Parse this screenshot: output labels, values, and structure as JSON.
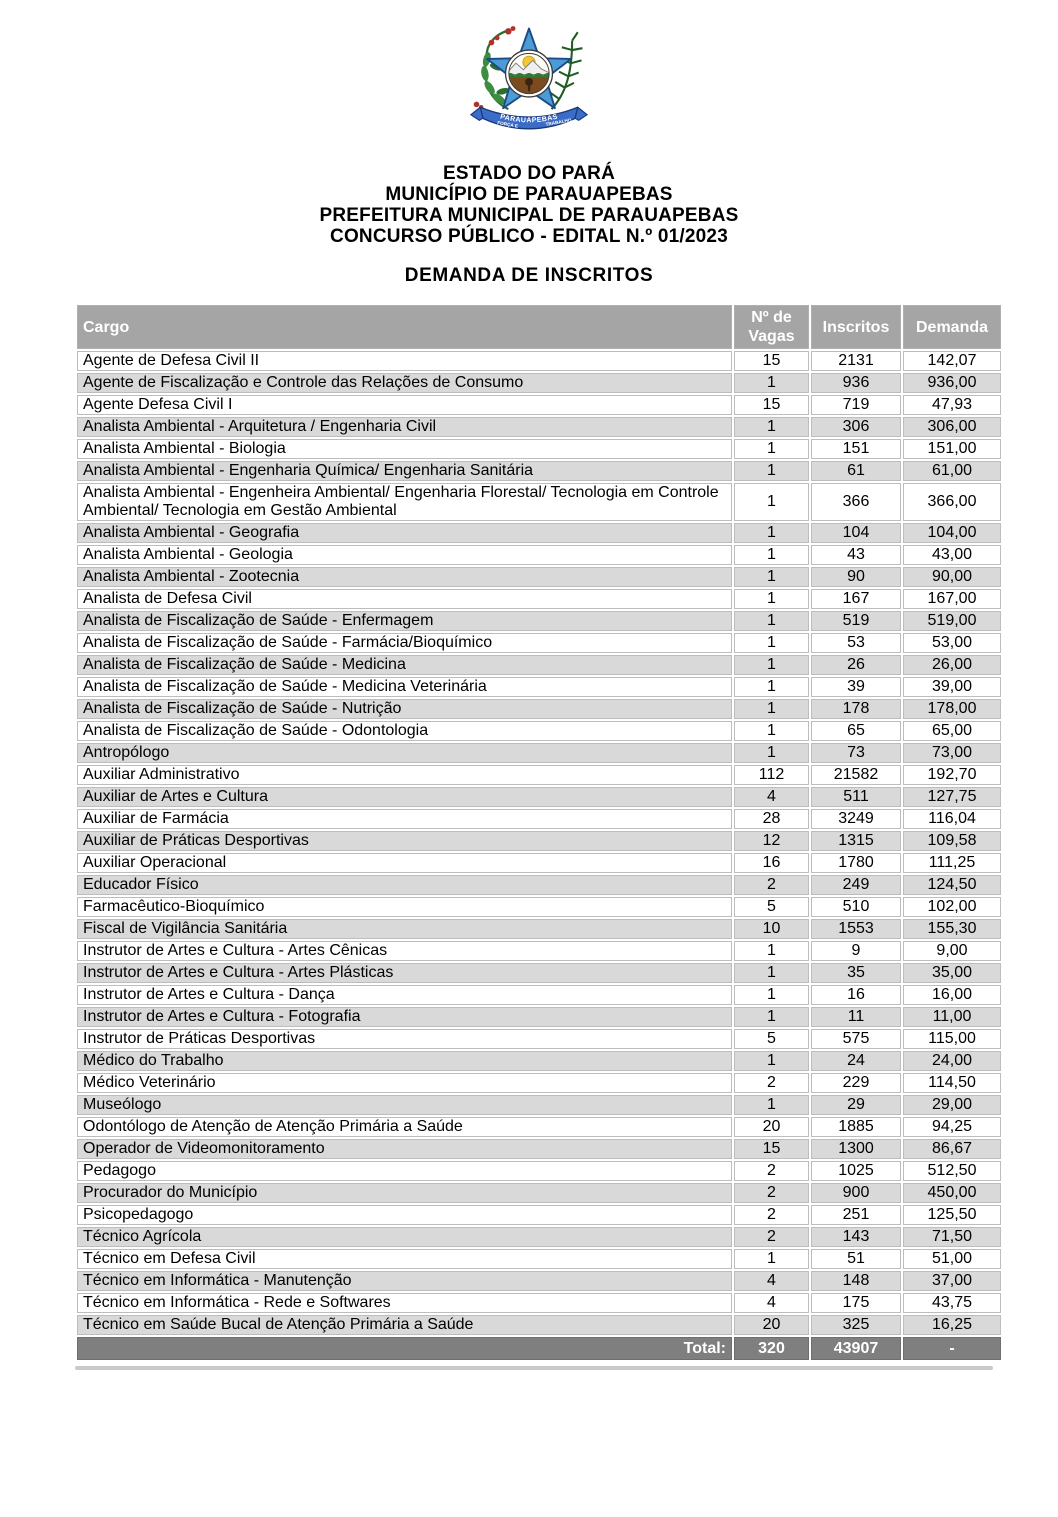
{
  "document": {
    "header_lines": [
      "ESTADO DO PARÁ",
      "MUNICÍPIO DE PARAUAPEBAS",
      "PREFEITURA MUNICIPAL DE PARAUAPEBAS",
      "CONCURSO PÚBLICO - EDITAL N.º 01/2023"
    ],
    "title": "DEMANDA DE INSCRITOS"
  },
  "logo": {
    "label": "Brasão de Parauapebas",
    "ribbon_text": "PARAUAPEBAS",
    "motto_left": "FORÇA E",
    "motto_right": "TRABALHO",
    "colors": {
      "star_blue": "#4b9cd6",
      "star_outline": "#1c4a85",
      "ribbon_blue": "#3b6cc7",
      "leaf_green": "#2d6e2f",
      "fern_green": "#1e5c22",
      "berry_red": "#b33126",
      "sun_yellow": "#f2c832",
      "soil_brown": "#7c4a1f"
    }
  },
  "table": {
    "columns": [
      "Cargo",
      "Nº de Vagas",
      "Inscritos",
      "Demanda"
    ],
    "rows": [
      [
        "Agente de Defesa Civil II",
        "15",
        "2131",
        "142,07"
      ],
      [
        "Agente de Fiscalização e Controle das Relações de Consumo",
        "1",
        "936",
        "936,00"
      ],
      [
        "Agente Defesa Civil I",
        "15",
        "719",
        "47,93"
      ],
      [
        "Analista Ambiental - Arquitetura / Engenharia Civil",
        "1",
        "306",
        "306,00"
      ],
      [
        "Analista Ambiental - Biologia",
        "1",
        "151",
        "151,00"
      ],
      [
        "Analista Ambiental - Engenharia Química/ Engenharia Sanitária",
        "1",
        "61",
        "61,00"
      ],
      [
        "Analista Ambiental - Engenheira Ambiental/ Engenharia Florestal/ Tecnologia em Controle Ambiental/ Tecnologia em Gestão Ambiental",
        "1",
        "366",
        "366,00"
      ],
      [
        "Analista Ambiental - Geografia",
        "1",
        "104",
        "104,00"
      ],
      [
        "Analista Ambiental - Geologia",
        "1",
        "43",
        "43,00"
      ],
      [
        "Analista Ambiental - Zootecnia",
        "1",
        "90",
        "90,00"
      ],
      [
        "Analista de Defesa Civil",
        "1",
        "167",
        "167,00"
      ],
      [
        "Analista de Fiscalização de Saúde - Enfermagem",
        "1",
        "519",
        "519,00"
      ],
      [
        "Analista de Fiscalização de Saúde - Farmácia/Bioquímico",
        "1",
        "53",
        "53,00"
      ],
      [
        "Analista de Fiscalização de Saúde - Medicina",
        "1",
        "26",
        "26,00"
      ],
      [
        "Analista de Fiscalização de Saúde - Medicina Veterinária",
        "1",
        "39",
        "39,00"
      ],
      [
        "Analista de Fiscalização de Saúde - Nutrição",
        "1",
        "178",
        "178,00"
      ],
      [
        "Analista de Fiscalização de Saúde - Odontologia",
        "1",
        "65",
        "65,00"
      ],
      [
        "Antropólogo",
        "1",
        "73",
        "73,00"
      ],
      [
        "Auxiliar Administrativo",
        "112",
        "21582",
        "192,70"
      ],
      [
        "Auxiliar de Artes e Cultura",
        "4",
        "511",
        "127,75"
      ],
      [
        "Auxiliar de Farmácia",
        "28",
        "3249",
        "116,04"
      ],
      [
        "Auxiliar de Práticas Desportivas",
        "12",
        "1315",
        "109,58"
      ],
      [
        "Auxiliar Operacional",
        "16",
        "1780",
        "111,25"
      ],
      [
        "Educador Físico",
        "2",
        "249",
        "124,50"
      ],
      [
        "Farmacêutico-Bioquímico",
        "5",
        "510",
        "102,00"
      ],
      [
        "Fiscal de Vigilância Sanitária",
        "10",
        "1553",
        "155,30"
      ],
      [
        "Instrutor de Artes e Cultura - Artes Cênicas",
        "1",
        "9",
        "9,00"
      ],
      [
        "Instrutor de Artes e Cultura - Artes Plásticas",
        "1",
        "35",
        "35,00"
      ],
      [
        "Instrutor de Artes e Cultura - Dança",
        "1",
        "16",
        "16,00"
      ],
      [
        "Instrutor de Artes e Cultura - Fotografia",
        "1",
        "11",
        "11,00"
      ],
      [
        "Instrutor de Práticas Desportivas",
        "5",
        "575",
        "115,00"
      ],
      [
        "Médico do Trabalho",
        "1",
        "24",
        "24,00"
      ],
      [
        "Médico Veterinário",
        "2",
        "229",
        "114,50"
      ],
      [
        "Museólogo",
        "1",
        "29",
        "29,00"
      ],
      [
        "Odontólogo de Atenção de Atenção Primária a Saúde",
        "20",
        "1885",
        "94,25"
      ],
      [
        "Operador de Videomonitoramento",
        "15",
        "1300",
        "86,67"
      ],
      [
        "Pedagogo",
        "2",
        "1025",
        "512,50"
      ],
      [
        "Procurador do Município",
        "2",
        "900",
        "450,00"
      ],
      [
        "Psicopedagogo",
        "2",
        "251",
        "125,50"
      ],
      [
        "Técnico Agrícola",
        "2",
        "143",
        "71,50"
      ],
      [
        "Técnico em Defesa Civil",
        "1",
        "51",
        "51,00"
      ],
      [
        "Técnico em Informática - Manutenção",
        "4",
        "148",
        "37,00"
      ],
      [
        "Técnico em Informática - Rede e Softwares",
        "4",
        "175",
        "43,75"
      ],
      [
        "Técnico em Saúde Bucal de Atenção Primária a Saúde",
        "20",
        "325",
        "16,25"
      ]
    ],
    "total": {
      "label": "Total:",
      "vagas": "320",
      "inscritos": "43907",
      "demanda": "-"
    },
    "colors": {
      "header_bg": "#a5a5a5",
      "stripe_bg": "#d9d9d9",
      "total_bg": "#7f7f7f",
      "border": "#bdbdbd"
    }
  }
}
